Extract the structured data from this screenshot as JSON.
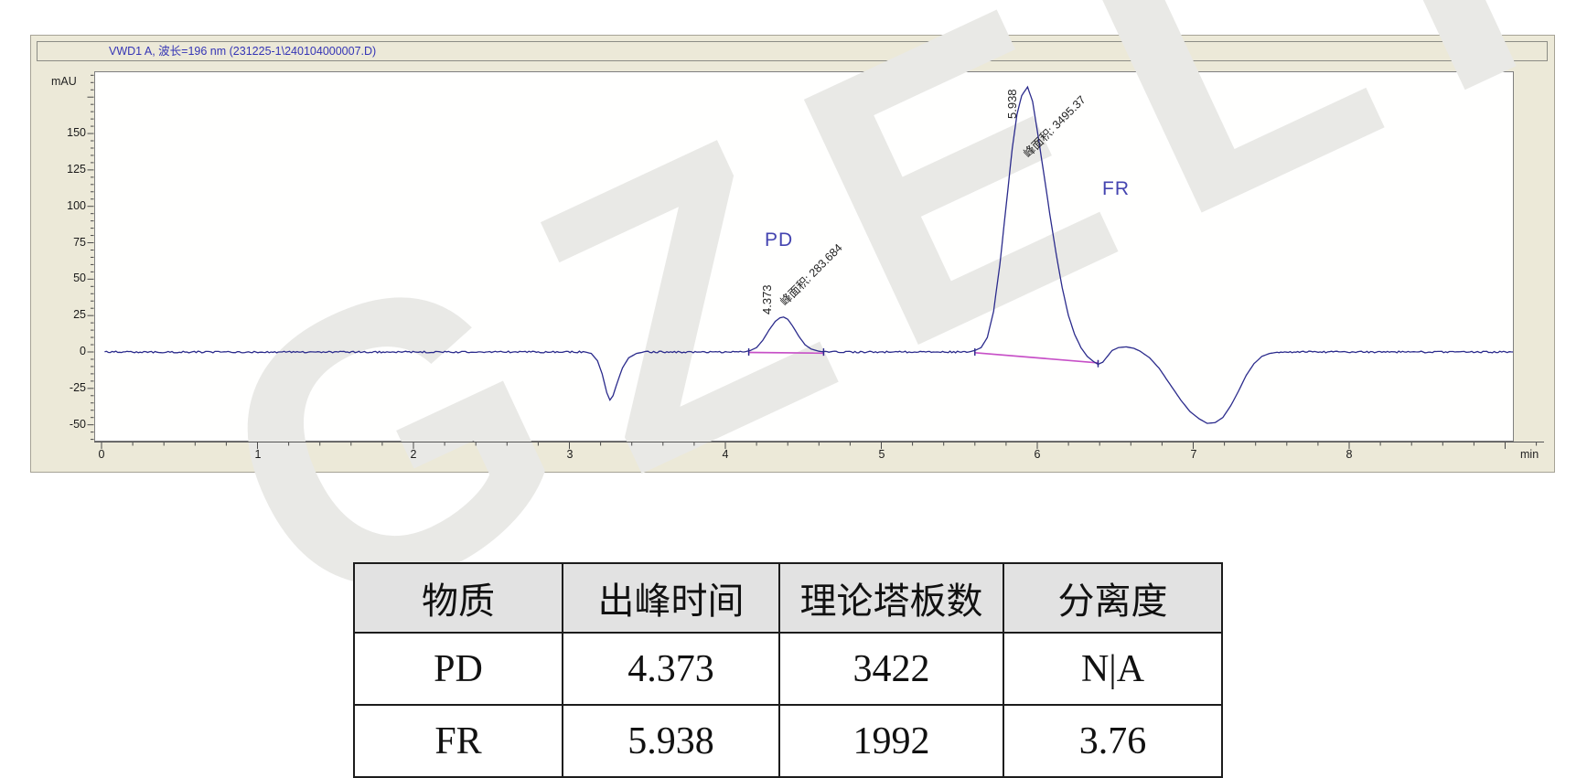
{
  "watermark": "GZELI",
  "chromatogram": {
    "title": "VWD1 A, 波长=196 nm (231225-1\\240104000007.D)",
    "y_unit": "mAU",
    "x_unit": "min",
    "colors": {
      "trace": "#2b2b8c",
      "integration_baseline": "#c750c7",
      "peak_name_labels": "#4444b0",
      "panel_background": "#ece9d8",
      "title_text": "#3535b5"
    },
    "peaks": [
      {
        "name": "PD",
        "rt_label": "4.373",
        "area_label": "峰面积: 283.684"
      },
      {
        "name": "FR",
        "rt_label": "5.938",
        "area_label": "峰面积: 3495.37"
      }
    ]
  },
  "chart_data": {
    "type": "line",
    "title": "VWD1 A, 波长=196 nm (231225-1\\240104000007.D)",
    "xlabel": "min",
    "ylabel": "mAU",
    "xlim": [
      0,
      9.25
    ],
    "ylim": [
      -62,
      192
    ],
    "x_ticks": [
      0,
      1,
      2,
      3,
      4,
      5,
      6,
      7,
      8
    ],
    "y_ticks": [
      150,
      125,
      100,
      75,
      50,
      25,
      0,
      -25,
      -50
    ],
    "x_minor_step": 0.2,
    "y_minor_step": 5,
    "grid": false,
    "legend": "none",
    "series": [
      {
        "name": "VWD1 A signal",
        "color": "#2b2b8c",
        "anchor_points": [
          [
            0.02,
            0
          ],
          [
            3.1,
            0
          ],
          [
            3.14,
            -1
          ],
          [
            3.18,
            -6
          ],
          [
            3.21,
            -15
          ],
          [
            3.24,
            -28
          ],
          [
            3.26,
            -33
          ],
          [
            3.28,
            -30
          ],
          [
            3.31,
            -20
          ],
          [
            3.34,
            -11
          ],
          [
            3.38,
            -4
          ],
          [
            3.43,
            -1
          ],
          [
            3.48,
            0
          ],
          [
            4.12,
            0
          ],
          [
            4.16,
            1
          ],
          [
            4.2,
            3
          ],
          [
            4.24,
            8
          ],
          [
            4.28,
            15
          ],
          [
            4.32,
            21
          ],
          [
            4.35,
            23.5
          ],
          [
            4.373,
            24
          ],
          [
            4.4,
            22.5
          ],
          [
            4.43,
            18
          ],
          [
            4.47,
            11
          ],
          [
            4.51,
            5
          ],
          [
            4.55,
            2
          ],
          [
            4.6,
            0.5
          ],
          [
            4.64,
            0
          ],
          [
            5.56,
            0
          ],
          [
            5.6,
            1
          ],
          [
            5.64,
            3
          ],
          [
            5.68,
            10
          ],
          [
            5.72,
            28
          ],
          [
            5.76,
            60
          ],
          [
            5.8,
            100
          ],
          [
            5.84,
            140
          ],
          [
            5.87,
            163
          ],
          [
            5.9,
            176
          ],
          [
            5.938,
            182
          ],
          [
            5.97,
            172
          ],
          [
            6.0,
            152
          ],
          [
            6.04,
            124
          ],
          [
            6.08,
            95
          ],
          [
            6.12,
            68
          ],
          [
            6.16,
            44
          ],
          [
            6.2,
            25
          ],
          [
            6.24,
            12
          ],
          [
            6.28,
            3
          ],
          [
            6.32,
            -3
          ],
          [
            6.36,
            -6.5
          ],
          [
            6.39,
            -8.5
          ],
          [
            6.42,
            -7
          ],
          [
            6.45,
            -3
          ],
          [
            6.48,
            1
          ],
          [
            6.52,
            3
          ],
          [
            6.57,
            3.5
          ],
          [
            6.62,
            2.5
          ],
          [
            6.66,
            0.5
          ],
          [
            6.72,
            -4
          ],
          [
            6.78,
            -11
          ],
          [
            6.85,
            -22
          ],
          [
            6.92,
            -33
          ],
          [
            6.98,
            -41
          ],
          [
            7.04,
            -46
          ],
          [
            7.09,
            -49
          ],
          [
            7.14,
            -48.5
          ],
          [
            7.19,
            -45
          ],
          [
            7.24,
            -37
          ],
          [
            7.29,
            -27
          ],
          [
            7.34,
            -16
          ],
          [
            7.39,
            -8
          ],
          [
            7.44,
            -3
          ],
          [
            7.49,
            -1
          ],
          [
            7.55,
            0
          ],
          [
            9.05,
            0
          ]
        ]
      }
    ],
    "integration_baselines": [
      {
        "peak": "PD",
        "from": [
          4.15,
          -0.3
        ],
        "to": [
          4.63,
          -0.8
        ],
        "color": "#c750c7"
      },
      {
        "peak": "FR",
        "from": [
          5.6,
          -0.5
        ],
        "to": [
          6.39,
          -7.5
        ],
        "color": "#c750c7"
      }
    ],
    "peak_markers_min": [
      4.15,
      4.63,
      5.6,
      6.39
    ],
    "annotations": [
      {
        "peak": "PD",
        "rt": 4.373,
        "height_mau": 24,
        "area": 283.684
      },
      {
        "peak": "FR",
        "rt": 5.938,
        "height_mau": 182,
        "area": 3495.37
      }
    ]
  },
  "table": {
    "headers": [
      "物质",
      "出峰时间",
      "理论塔板数",
      "分离度"
    ],
    "rows": [
      [
        "PD",
        "4.373",
        "3422",
        "N|A"
      ],
      [
        "FR",
        "5.938",
        "1992",
        "3.76"
      ]
    ]
  }
}
